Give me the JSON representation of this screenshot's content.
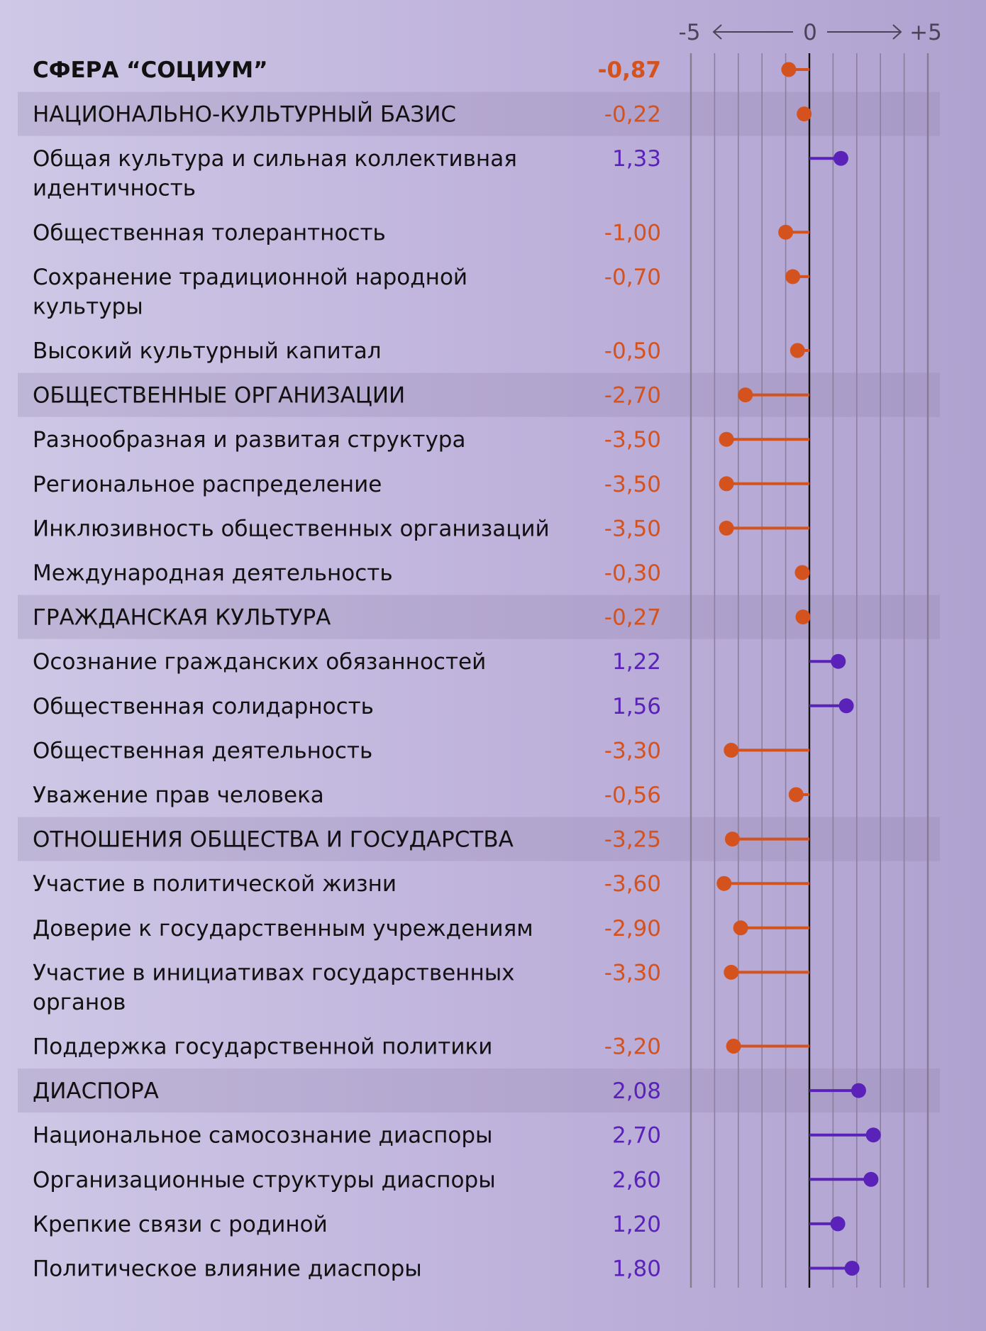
{
  "chart_data": {
    "type": "lollipop",
    "title": "СФЕРА “СОЦИУМ”",
    "xlim": [
      -5,
      5
    ],
    "axis": {
      "min_label": "-5",
      "zero_label": "0",
      "max_label": "+5"
    },
    "grid": true,
    "colors": {
      "negative": "#d4521e",
      "positive": "#5a22b8",
      "text": "#111111"
    },
    "rows": [
      {
        "kind": "total",
        "lines": [
          "СФЕРА “СОЦИУМ”"
        ],
        "value": -0.87,
        "display": "-0,87"
      },
      {
        "kind": "category",
        "lines": [
          "НАЦИОНАЛЬНО-КУЛЬТУРНЫЙ БАЗИС"
        ],
        "value": -0.22,
        "display": "-0,22"
      },
      {
        "kind": "item",
        "lines": [
          "Общая культура и сильная коллективная",
          "идентичность"
        ],
        "value": 1.33,
        "display": "1,33"
      },
      {
        "kind": "item",
        "lines": [
          "Общественная толерантность"
        ],
        "value": -1.0,
        "display": "-1,00"
      },
      {
        "kind": "item",
        "lines": [
          "Сохранение традиционной народной",
          "культуры"
        ],
        "value": -0.7,
        "display": "-0,70"
      },
      {
        "kind": "item",
        "lines": [
          "Высокий культурный капитал"
        ],
        "value": -0.5,
        "display": "-0,50"
      },
      {
        "kind": "category",
        "lines": [
          "ОБЩЕСТВЕННЫЕ ОРГАНИЗАЦИИ"
        ],
        "value": -2.7,
        "display": "-2,70"
      },
      {
        "kind": "item",
        "lines": [
          "Разнообразная и развитая структура"
        ],
        "value": -3.5,
        "display": "-3,50"
      },
      {
        "kind": "item",
        "lines": [
          "Региональное распределение"
        ],
        "value": -3.5,
        "display": "-3,50"
      },
      {
        "kind": "item",
        "lines": [
          "Инклюзивность общественных организаций"
        ],
        "value": -3.5,
        "display": "-3,50"
      },
      {
        "kind": "item",
        "lines": [
          "Международная деятельность"
        ],
        "value": -0.3,
        "display": "-0,30"
      },
      {
        "kind": "category",
        "lines": [
          "ГРАЖДАНСКАЯ КУЛЬТУРА"
        ],
        "value": -0.27,
        "display": "-0,27"
      },
      {
        "kind": "item",
        "lines": [
          "Осознание гражданских обязанностей"
        ],
        "value": 1.22,
        "display": "1,22"
      },
      {
        "kind": "item",
        "lines": [
          "Общественная солидарность"
        ],
        "value": 1.56,
        "display": "1,56"
      },
      {
        "kind": "item",
        "lines": [
          "Общественная деятельность"
        ],
        "value": -3.3,
        "display": "-3,30"
      },
      {
        "kind": "item",
        "lines": [
          "Уважение прав человека"
        ],
        "value": -0.56,
        "display": "-0,56"
      },
      {
        "kind": "category",
        "lines": [
          "ОТНОШЕНИЯ ОБЩЕСТВА И ГОСУДАРСТВА"
        ],
        "value": -3.25,
        "display": "-3,25"
      },
      {
        "kind": "item",
        "lines": [
          "Участие в политической жизни"
        ],
        "value": -3.6,
        "display": "-3,60"
      },
      {
        "kind": "item",
        "lines": [
          "Доверие к государственным учреждениям"
        ],
        "value": -2.9,
        "display": "-2,90"
      },
      {
        "kind": "item",
        "lines": [
          "Участие в инициативах государственных",
          "органов"
        ],
        "value": -3.3,
        "display": "-3,30"
      },
      {
        "kind": "item",
        "lines": [
          "Поддержка государственной политики"
        ],
        "value": -3.2,
        "display": "-3,20"
      },
      {
        "kind": "category",
        "lines": [
          "ДИАСПОРА"
        ],
        "value": 2.08,
        "display": "2,08"
      },
      {
        "kind": "item",
        "lines": [
          "Национальное самосознание диаспоры"
        ],
        "value": 2.7,
        "display": "2,70"
      },
      {
        "kind": "item",
        "lines": [
          "Организационные структуры диаспоры"
        ],
        "value": 2.6,
        "display": "2,60"
      },
      {
        "kind": "item",
        "lines": [
          "Крепкие связи с родиной"
        ],
        "value": 1.2,
        "display": "1,20"
      },
      {
        "kind": "item",
        "lines": [
          "Политическое влияние диаспоры"
        ],
        "value": 1.8,
        "display": "1,80"
      }
    ]
  }
}
